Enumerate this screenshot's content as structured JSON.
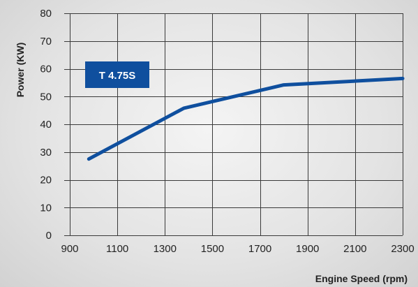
{
  "chart_data": {
    "type": "line",
    "title": "",
    "xlabel": "Engine Speed (rpm)",
    "ylabel": "Power (KW)",
    "xlim": [
      900,
      2300
    ],
    "ylim": [
      0,
      80
    ],
    "x_ticks": [
      900,
      1100,
      1300,
      1500,
      1700,
      1900,
      2100,
      2300
    ],
    "y_ticks": [
      0,
      10,
      20,
      30,
      40,
      50,
      60,
      70,
      80
    ],
    "x_tick_labels": [
      "900",
      "1100",
      "1300",
      "1500",
      "1700",
      "1900",
      "2100",
      "2300"
    ],
    "y_tick_labels": [
      "0",
      "10",
      "20",
      "30",
      "40",
      "50",
      "60",
      "70",
      "80"
    ],
    "grid": true,
    "series": [
      {
        "x": [
          980,
          1380,
          1800,
          2300
        ],
        "y": [
          27.5,
          45.8,
          54.2,
          56.5
        ],
        "color": "#0f4f9e"
      }
    ],
    "annotation": {
      "text": "T 4.75S",
      "color": "#0f4f9e"
    }
  }
}
